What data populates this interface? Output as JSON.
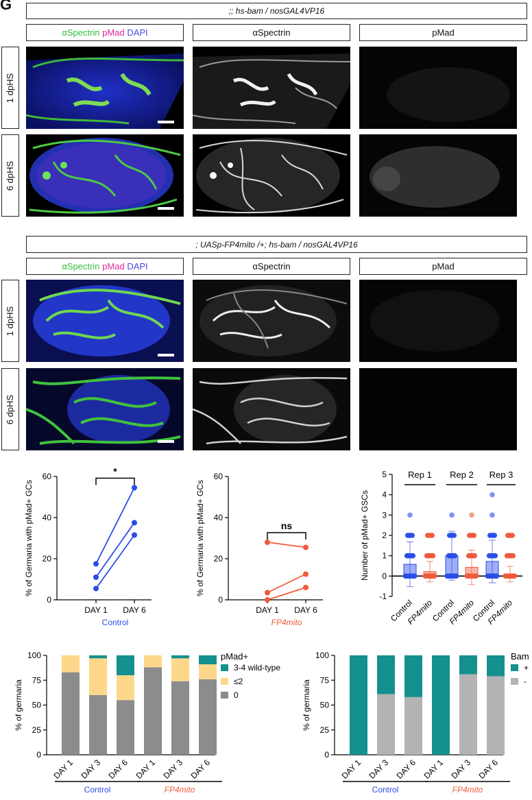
{
  "panel_letter": "G",
  "sectionA": {
    "genotype": ";; hs-bam / nosGAL4VP16",
    "col_labels": {
      "merge": [
        "αSpectrin",
        "pMad",
        "DAPI"
      ],
      "spectrin": "αSpectrin",
      "pmad": "pMad"
    },
    "rows": [
      "1 dpHS",
      "6 dpHS"
    ]
  },
  "sectionB": {
    "genotype": "; UASp-FP4mito /+; hs-bam / nosGAL4VP16",
    "col_labels": {
      "merge": [
        "αSpectrin",
        "pMad",
        "DAPI"
      ],
      "spectrin": "αSpectrin",
      "pmad": "pMad"
    },
    "rows": [
      "1 dpHS",
      "6 dpHS"
    ]
  },
  "colors": {
    "blue": "#2a4de8",
    "red": "#f05a3c",
    "teal": "#14908f",
    "yellow": "#fdd88a",
    "gray": "#8c8c8c",
    "lightgray": "#b3b3b3"
  },
  "chart_data": [
    {
      "type": "line",
      "ylabel": "% of Germaria with pMad+ GCs",
      "xlabel": "Control",
      "categories": [
        "DAY 1",
        "DAY 6"
      ],
      "ylim": [
        0,
        60
      ],
      "yticks": [
        "0",
        "20",
        "40",
        "60"
      ],
      "series": [
        {
          "values": [
            17.5,
            54.5
          ]
        },
        {
          "values": [
            11,
            37.5
          ]
        },
        {
          "values": [
            5.5,
            31.5
          ]
        }
      ],
      "annotation": "*"
    },
    {
      "type": "line",
      "ylabel": "% of Germaria with pMad+ GCs",
      "xlabel": "FP4mito",
      "categories": [
        "DAY 1",
        "DAY 6"
      ],
      "ylim": [
        0,
        60
      ],
      "yticks": [
        "0",
        "20",
        "40",
        "60"
      ],
      "series": [
        {
          "values": [
            28,
            25.5
          ]
        },
        {
          "values": [
            3.5,
            12.5
          ]
        },
        {
          "values": [
            0,
            6
          ]
        }
      ],
      "annotation": "ns"
    },
    {
      "type": "bar",
      "ylabel": "Number of pMad+ GSCs",
      "categories": [
        "Control",
        "FP4mito",
        "Control",
        "FP4mito",
        "Control",
        "FP4mito"
      ],
      "groups": [
        "Rep 1",
        "Rep 2",
        "Rep 3"
      ],
      "ylim": [
        -1,
        5
      ],
      "yticks": [
        "-1",
        "0",
        "1",
        "2",
        "3",
        "4",
        "5"
      ],
      "means": [
        0.58,
        0.22,
        1.0,
        0.43,
        0.72,
        0.1
      ],
      "sd": [
        1.1,
        0.5,
        1.2,
        0.85,
        1.05,
        0.38
      ],
      "point_levels": [
        [
          0,
          1,
          2,
          3
        ],
        [
          0,
          1,
          2
        ],
        [
          0,
          1,
          2,
          3
        ],
        [
          0,
          1,
          2,
          3
        ],
        [
          0,
          1,
          2,
          3,
          4
        ],
        [
          0,
          1,
          2
        ]
      ]
    },
    {
      "type": "bar",
      "ylabel": "% of germaria",
      "legend_title": "pMad+",
      "categories": [
        "DAY 1",
        "DAY 3",
        "DAY 6",
        "DAY 1",
        "DAY 3",
        "DAY 6"
      ],
      "groups": [
        "Control",
        "FP4mito"
      ],
      "ylim": [
        0,
        100
      ],
      "yticks": [
        "0",
        "25",
        "50",
        "75",
        "100"
      ],
      "series": [
        {
          "name": "0",
          "values": [
            83,
            60,
            55,
            88,
            74,
            76
          ]
        },
        {
          "name": "≤2",
          "values": [
            17,
            37,
            25,
            12,
            23,
            15
          ]
        },
        {
          "name": "3-4 wild-type",
          "values": [
            0,
            3,
            20,
            0,
            3,
            9
          ]
        }
      ]
    },
    {
      "type": "bar",
      "ylabel": "% of germaria",
      "legend_title": "Bam",
      "categories": [
        "DAY 1",
        "DAY 3",
        "DAY 6",
        "DAY 1",
        "DAY 3",
        "DAY 6"
      ],
      "groups": [
        "Control",
        "FP4mito"
      ],
      "ylim": [
        0,
        100
      ],
      "yticks": [
        "0",
        "25",
        "50",
        "75",
        "100"
      ],
      "series": [
        {
          "name": "-",
          "values": [
            0,
            61,
            58,
            0,
            81,
            79
          ]
        },
        {
          "name": "+",
          "values": [
            100,
            39,
            42,
            100,
            19,
            21
          ]
        }
      ]
    }
  ]
}
